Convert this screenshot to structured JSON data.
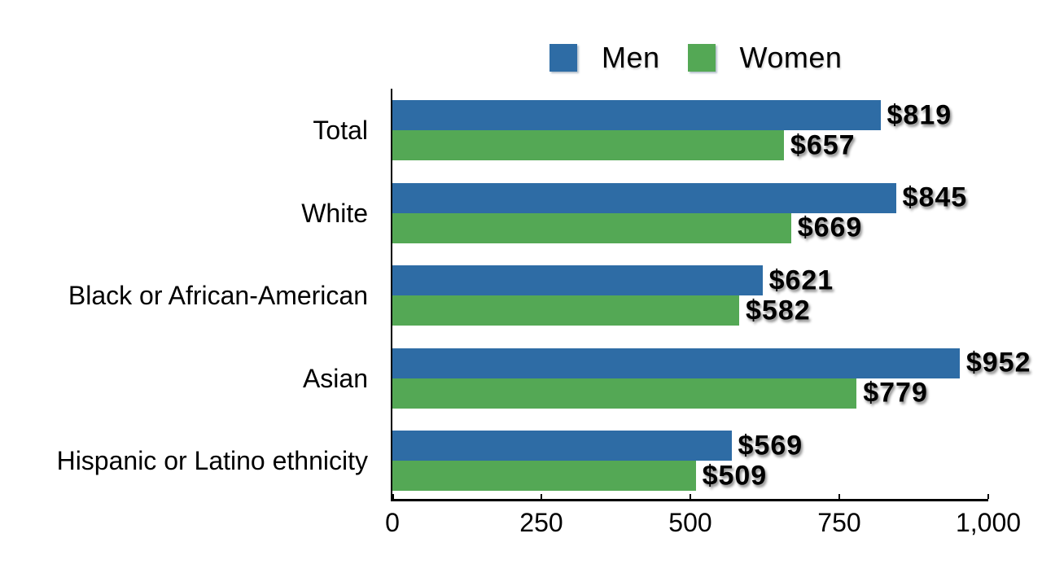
{
  "chart_data": {
    "type": "bar",
    "orientation": "horizontal",
    "title": "",
    "xlabel": "",
    "ylabel": "",
    "grid": false,
    "categories": [
      "Total",
      "White",
      "Black or African-American",
      "Asian",
      "Hispanic or Latino ethnicity"
    ],
    "series": [
      {
        "name": "Men",
        "color": "#2E6CA5",
        "values": [
          819,
          845,
          621,
          952,
          569
        ],
        "labels": [
          "$819",
          "$845",
          "$621",
          "$952",
          "$569"
        ]
      },
      {
        "name": "Women",
        "color": "#54A855",
        "values": [
          657,
          669,
          582,
          779,
          509
        ],
        "labels": [
          "$657",
          "$669",
          "$582",
          "$779",
          "$509"
        ]
      }
    ],
    "x_axis": {
      "min": 0,
      "max": 1000,
      "ticks": [
        0,
        250,
        500,
        750,
        1000
      ],
      "tick_labels": [
        "0",
        "250",
        "500",
        "750",
        "1,000"
      ]
    },
    "legend": {
      "position": "top",
      "entries": [
        "Men",
        "Women"
      ]
    }
  },
  "legend": {
    "men_label": "Men",
    "women_label": "Women"
  },
  "colors": {
    "men": "#2E6CA5",
    "women": "#54A855",
    "axis": "#000000",
    "background": "#FFFFFF",
    "text": "#000000"
  }
}
